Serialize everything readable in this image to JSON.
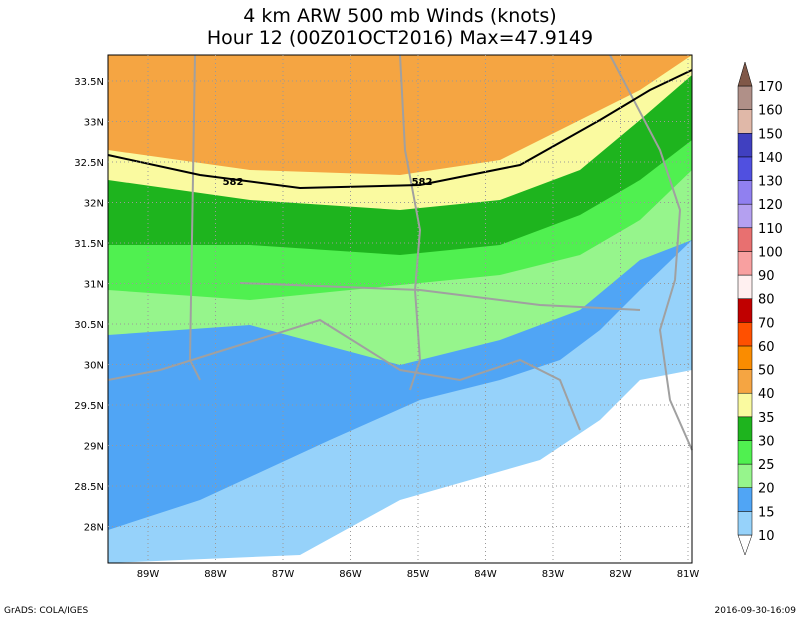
{
  "header": {
    "title": "4 km ARW 500 mb Winds (knots)",
    "subtitle": "Hour 12 (00Z01OCT2016) Max=47.9149"
  },
  "map": {
    "lat_labels": [
      "33.5N",
      "33N",
      "32.5N",
      "32N",
      "31.5N",
      "31N",
      "30.5N",
      "30N",
      "29.5N",
      "29N",
      "28.5N",
      "28N"
    ],
    "lon_labels": [
      "89W",
      "88W",
      "87W",
      "86W",
      "85W",
      "84W",
      "83W",
      "82W",
      "81W"
    ],
    "contour_labels": [
      "582",
      "582"
    ]
  },
  "colorbar": {
    "labels": [
      "10",
      "15",
      "20",
      "25",
      "30",
      "35",
      "40",
      "50",
      "60",
      "70",
      "80",
      "90",
      "100",
      "110",
      "120",
      "130",
      "140",
      "150",
      "160",
      "170"
    ],
    "colors": [
      "#ffffff",
      "#96d2fa",
      "#50a5f5",
      "#96f58c",
      "#50f050",
      "#1eb41e",
      "#fafaa0",
      "#f5a542",
      "#fa8c00",
      "#ff5000",
      "#c00000",
      "#fff0f0",
      "#f8a0a0",
      "#e87070",
      "#b4a0f0",
      "#9080f0",
      "#5050e0",
      "#4040c0",
      "#e0b8a8",
      "#b09088",
      "#805848"
    ]
  },
  "footer": {
    "left": "GrADS: COLA/IGES",
    "right": "2016-09-30-16:09"
  }
}
